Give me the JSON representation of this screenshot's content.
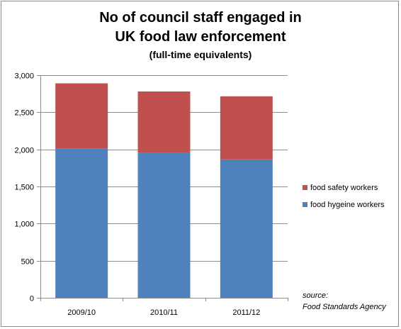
{
  "chart_data": {
    "type": "bar",
    "stacked": true,
    "title": "No of council staff engaged in\nUK food law enforcement",
    "title_lines": [
      "No of council staff engaged in",
      "UK food law enforcement"
    ],
    "subtitle": "(full-time equivalents)",
    "categories": [
      "2009/10",
      "2010/11",
      "2011/12"
    ],
    "series": [
      {
        "name": "food hygeine workers",
        "color": "#4f81bd",
        "values": [
          2010,
          1950,
          1865
        ]
      },
      {
        "name": "food safety workers",
        "color": "#c0504d",
        "values": [
          880,
          830,
          850
        ]
      }
    ],
    "xlabel": "",
    "ylabel": "",
    "ylim": [
      0,
      3000
    ],
    "y_ticks": [
      0,
      500,
      1000,
      1500,
      2000,
      2500,
      3000
    ],
    "y_tick_labels": [
      "0",
      "500",
      "1,000",
      "1,500",
      "2,000",
      "2,500",
      "3,000"
    ],
    "grid": true,
    "legend_position": "right"
  },
  "source_note": {
    "line1": "source:",
    "line2": "Food Standards Agency"
  }
}
